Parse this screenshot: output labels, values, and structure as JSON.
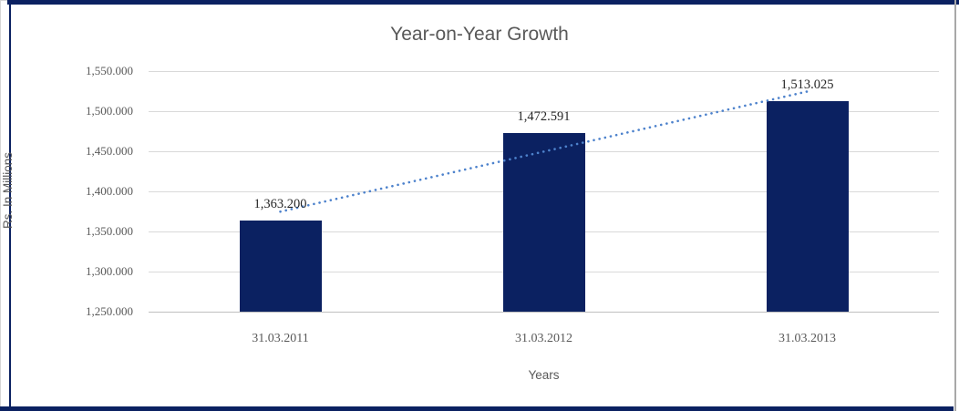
{
  "frame": {
    "cell_border_color": "#0b2161",
    "right_border_color": "#a8a8a8",
    "outer_edge_color": "#d6d6d6"
  },
  "chart_data": {
    "type": "bar",
    "title": "Year-on-Year Growth",
    "xlabel": "Years",
    "ylabel": "Rs. In Millions",
    "categories": [
      "31.03.2011",
      "31.03.2012",
      "31.03.2013"
    ],
    "values": [
      1363.2,
      1472.591,
      1513.025
    ],
    "data_labels": [
      "1,363.200",
      "1,472.591",
      "1,513.025"
    ],
    "ylim": [
      1250,
      1550
    ],
    "yticks": [
      {
        "value": 1550,
        "label": "1,550.000"
      },
      {
        "value": 1500,
        "label": "1,500.000"
      },
      {
        "value": 1450,
        "label": "1,450.000"
      },
      {
        "value": 1400,
        "label": "1,400.000"
      },
      {
        "value": 1350,
        "label": "1,350.000"
      },
      {
        "value": 1300,
        "label": "1,300.000"
      },
      {
        "value": 1250,
        "label": "1,250.000"
      }
    ],
    "grid": true,
    "legend": "none",
    "bar_color": "#0b2161",
    "gridline_color": "#d9d9d9",
    "axis_line_color": "#bfbfbf",
    "title_color": "#595959",
    "tick_label_color": "#595959",
    "data_label_color": "#262626",
    "trendline": {
      "type": "linear",
      "style": "dotted",
      "color": "#4d82cc"
    }
  }
}
